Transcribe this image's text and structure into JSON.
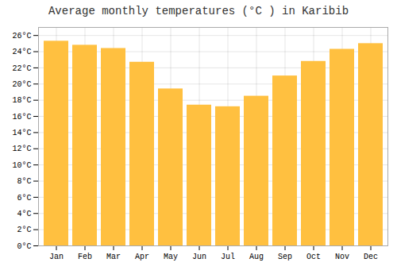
{
  "chart_data": {
    "type": "bar",
    "title": "Average monthly temperatures (°C ) in Karibib",
    "categories": [
      "Jan",
      "Feb",
      "Mar",
      "Apr",
      "May",
      "Jun",
      "Jul",
      "Aug",
      "Sep",
      "Oct",
      "Nov",
      "Dec"
    ],
    "values": [
      25.3,
      24.8,
      24.4,
      22.7,
      19.4,
      17.4,
      17.2,
      18.5,
      21.0,
      22.8,
      24.3,
      25.0
    ],
    "color": "#FFC040",
    "ylim": [
      0,
      27
    ],
    "yticks": [
      {
        "value": 0,
        "label": "0°C"
      },
      {
        "value": 2,
        "label": "2°C"
      },
      {
        "value": 4,
        "label": "4°C"
      },
      {
        "value": 6,
        "label": "6°C"
      },
      {
        "value": 8,
        "label": "8°C"
      },
      {
        "value": 10,
        "label": "10°C"
      },
      {
        "value": 12,
        "label": "12°C"
      },
      {
        "value": 14,
        "label": "14°C"
      },
      {
        "value": 16,
        "label": "16°C"
      },
      {
        "value": 18,
        "label": "18°C"
      },
      {
        "value": 20,
        "label": "20°C"
      },
      {
        "value": 22,
        "label": "22°C"
      },
      {
        "value": 24,
        "label": "24°C"
      },
      {
        "value": 26,
        "label": "26°C"
      }
    ],
    "grid": true
  }
}
